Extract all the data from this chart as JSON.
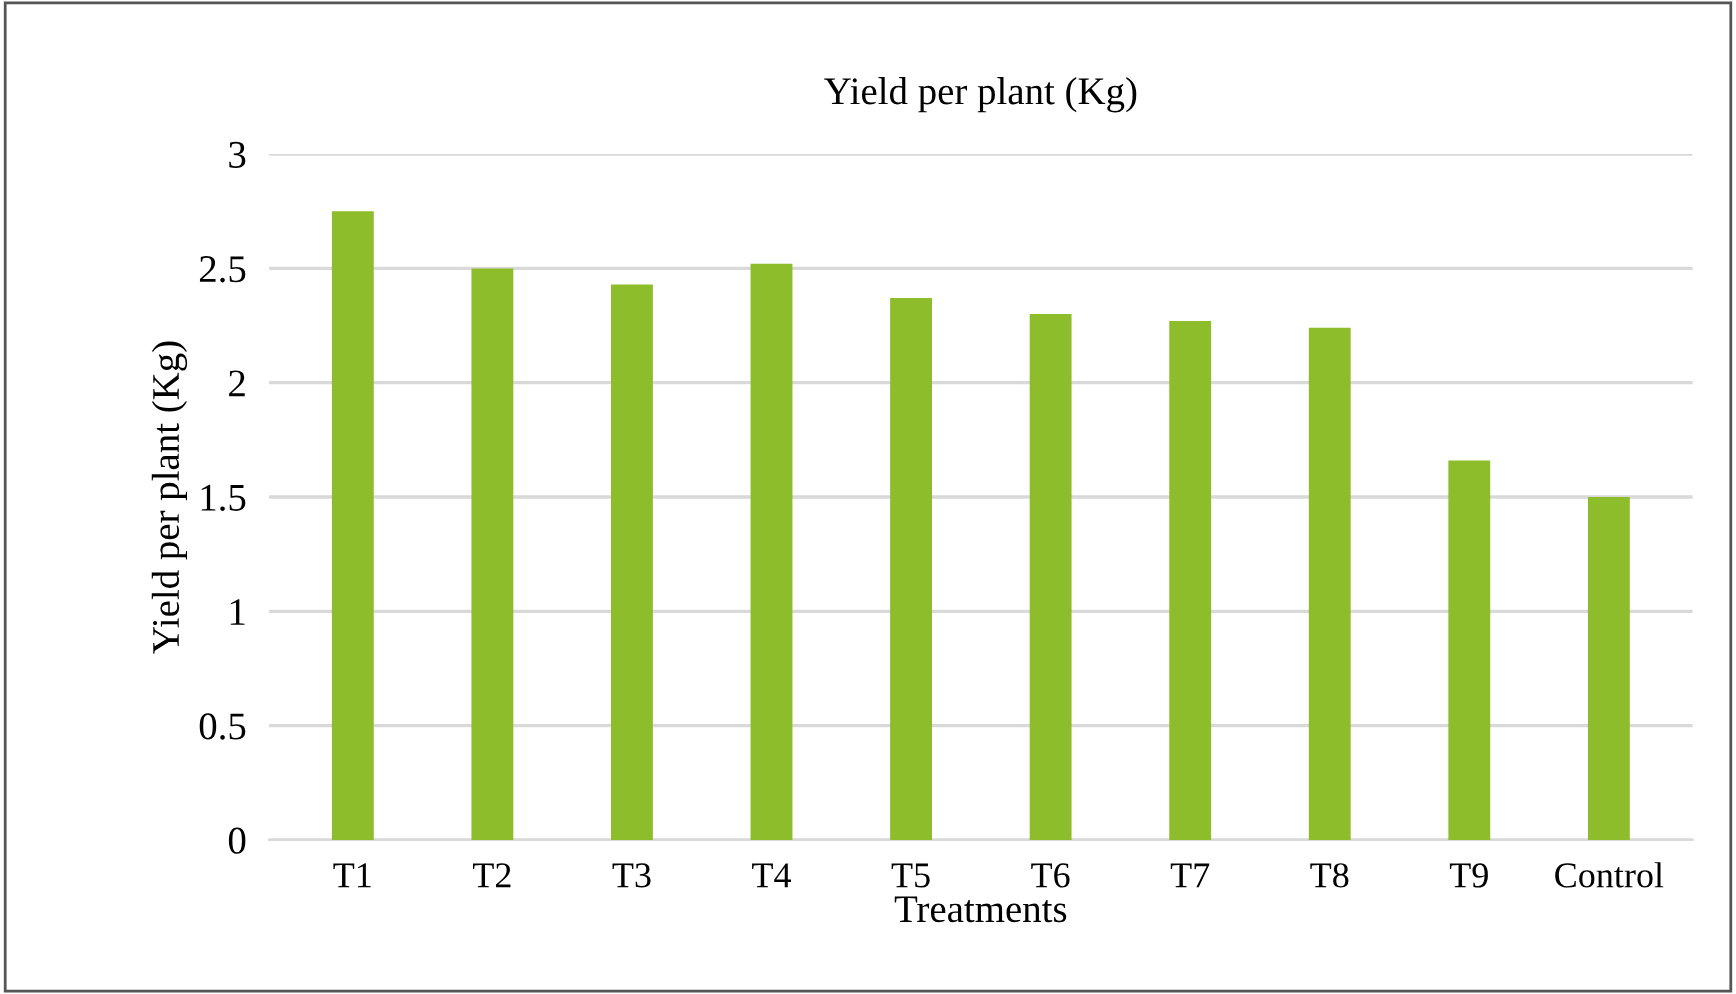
{
  "chart_data": {
    "type": "bar",
    "title": "Yield per plant (Kg)",
    "xlabel": "Treatments",
    "ylabel": "Yield per plant (Kg)",
    "categories": [
      "T1",
      "T2",
      "T3",
      "T4",
      "T5",
      "T6",
      "T7",
      "T8",
      "T9",
      "Control"
    ],
    "values": [
      2.75,
      2.5,
      2.43,
      2.52,
      2.37,
      2.3,
      2.27,
      2.24,
      1.66,
      1.5
    ],
    "color": "#8dbd2a",
    "ylim": [
      0,
      3
    ],
    "yticks": [
      0,
      0.5,
      1,
      1.5,
      2,
      2.5,
      3
    ],
    "grid": "y",
    "legend": false
  }
}
